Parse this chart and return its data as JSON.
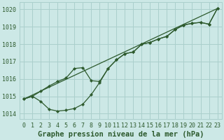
{
  "title": "Graphe pression niveau de la mer (hPa)",
  "bg_color": "#cce8e6",
  "grid_color": "#aacfcc",
  "line_color": "#2d5a2d",
  "ylim": [
    1013.7,
    1020.4
  ],
  "xlim": [
    -0.5,
    23.5
  ],
  "yticks": [
    1014,
    1015,
    1016,
    1017,
    1018,
    1019,
    1020
  ],
  "xticks": [
    0,
    1,
    2,
    3,
    4,
    5,
    6,
    7,
    8,
    9,
    10,
    11,
    12,
    13,
    14,
    15,
    16,
    17,
    18,
    19,
    20,
    21,
    22,
    23
  ],
  "line1_x": [
    0,
    1,
    2,
    3,
    4,
    5,
    6,
    7,
    8,
    9,
    10,
    11,
    12,
    13,
    14,
    15,
    16,
    17,
    18,
    19,
    20,
    21,
    22,
    23
  ],
  "line1_y": [
    1014.85,
    1015.0,
    1015.3,
    1015.6,
    1015.85,
    1016.05,
    1016.6,
    1016.65,
    1015.9,
    1015.85,
    1016.6,
    1017.1,
    1017.45,
    1017.55,
    1018.0,
    1018.1,
    1018.3,
    1018.45,
    1018.85,
    1019.1,
    1019.2,
    1019.25,
    1019.15,
    1020.05
  ],
  "line2_x": [
    0,
    1,
    2,
    3,
    4,
    5,
    6,
    7,
    8,
    9,
    10,
    11,
    12,
    13,
    14,
    15,
    16,
    17,
    18,
    19,
    20,
    21,
    22,
    23
  ],
  "line2_y": [
    1014.85,
    1015.0,
    1014.7,
    1014.25,
    1014.15,
    1014.2,
    1014.3,
    1014.55,
    1015.1,
    1015.8,
    1016.6,
    1017.1,
    1017.45,
    1017.55,
    1018.0,
    1018.1,
    1018.3,
    1018.45,
    1018.85,
    1019.1,
    1019.2,
    1019.25,
    1019.15,
    1020.05
  ],
  "line3_x": [
    0,
    23
  ],
  "line3_y": [
    1014.85,
    1020.05
  ],
  "title_fontsize": 7.5,
  "tick_fontsize": 6.0
}
